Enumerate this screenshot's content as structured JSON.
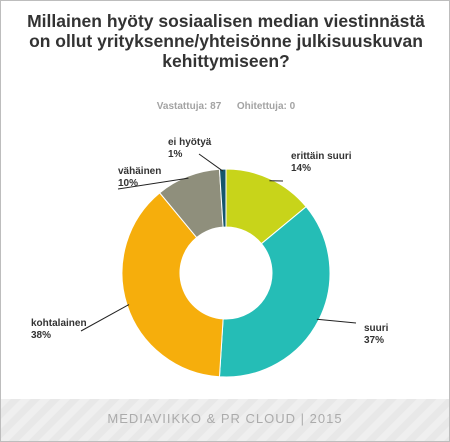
{
  "chart_data": {
    "type": "pie",
    "title": "Millainen hyöty sosiaalisen median viestinnästä on ollut yrityksenne/yhteisönne julkisuuskuvan kehittymiseen?",
    "responses": {
      "answered_label": "Vastattuja",
      "answered": 87,
      "skipped_label": "Ohitettuja",
      "skipped": 0
    },
    "slices": [
      {
        "label": "erittäin suuri",
        "value": 14,
        "display": "14%",
        "color": "#c8d41a"
      },
      {
        "label": "suuri",
        "value": 37,
        "display": "37%",
        "color": "#25bdb6"
      },
      {
        "label": "kohtalainen",
        "value": 38,
        "display": "38%",
        "color": "#f6ae0c"
      },
      {
        "label": "vähäinen",
        "value": 10,
        "display": "10%",
        "color": "#8f8f7c"
      },
      {
        "label": "ei hyötyä",
        "value": 1,
        "display": "1%",
        "color": "#15566c"
      }
    ]
  },
  "footer": {
    "text": "MEDIAVIIKKO & PR CLOUD | 2015"
  }
}
